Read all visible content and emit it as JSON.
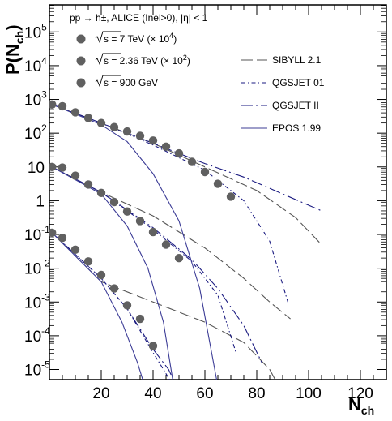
{
  "chart_data": {
    "type": "scatter",
    "title": "pp → h±, ALICE (Inel>0), |η| < 1",
    "xlabel": {
      "main": "N",
      "sub": "ch"
    },
    "ylabel": {
      "pre": "P(N",
      "sub": "ch",
      "post": ")"
    },
    "xlim": [
      0,
      130
    ],
    "ylim_log10": [
      -5.3,
      5.8
    ],
    "yscale": "log",
    "x_ticks": [
      20,
      40,
      60,
      80,
      100,
      120
    ],
    "y_ticks": [
      {
        "exp": 5,
        "base": "10",
        "sup": "5"
      },
      {
        "exp": 4,
        "base": "10",
        "sup": "4"
      },
      {
        "exp": 3,
        "base": "10",
        "sup": "3"
      },
      {
        "exp": 2,
        "base": "10",
        "sup": "2"
      },
      {
        "exp": 1,
        "base": "10",
        "sup": ""
      },
      {
        "exp": 0,
        "base": "1",
        "sup": ""
      },
      {
        "exp": -1,
        "base": "10",
        "sup": "-1"
      },
      {
        "exp": -2,
        "base": "10",
        "sup": "-2"
      },
      {
        "exp": -3,
        "base": "10",
        "sup": "-3"
      },
      {
        "exp": -4,
        "base": "10",
        "sup": "-4"
      },
      {
        "exp": -5,
        "base": "10",
        "sup": "-5"
      }
    ],
    "grid": false,
    "legend_position": "top",
    "data_series": [
      {
        "name": "√s = 7 TeV (× 10⁴)",
        "label_main": "s = 7 TeV (× 10",
        "label_sup": "4",
        "label_end": ")",
        "marker": "circle",
        "color": "#606060",
        "x": [
          1,
          5,
          10,
          15,
          20,
          25,
          30,
          35,
          40,
          45,
          50,
          55,
          60,
          65,
          70
        ],
        "log10_y": [
          2.85,
          2.8,
          2.62,
          2.45,
          2.3,
          2.18,
          2.05,
          1.92,
          1.78,
          1.6,
          1.4,
          1.15,
          0.85,
          0.5,
          0.12
        ]
      },
      {
        "name": "√s = 2.36 TeV (× 10²)",
        "label_main": "s = 2.36 TeV (× 10",
        "label_sup": "2",
        "label_end": ")",
        "marker": "circle",
        "color": "#606060",
        "x": [
          1,
          5,
          10,
          15,
          20,
          25,
          30,
          35,
          40,
          45,
          50
        ],
        "log10_y": [
          1.0,
          0.98,
          0.74,
          0.48,
          0.23,
          -0.04,
          -0.32,
          -0.6,
          -0.93,
          -1.3,
          -1.7
        ]
      },
      {
        "name": "√s = 900 GeV",
        "label_main": "s = 900 GeV",
        "label_sup": "",
        "label_end": "",
        "marker": "circle",
        "color": "#606060",
        "x": [
          1,
          5,
          10,
          15,
          20,
          25,
          30,
          35,
          40
        ],
        "log10_y": [
          -0.95,
          -1.1,
          -1.45,
          -1.8,
          -2.2,
          -2.6,
          -3.1,
          -3.5,
          -4.3
        ]
      }
    ],
    "model_series": [
      {
        "name": "SIBYLL 2.1",
        "style": "long-dash",
        "color": "#555555",
        "curves": [
          {
            "x": [
              1,
              20,
              40,
              60,
              80,
              95,
              105
            ],
            "log10_y": [
              2.85,
              2.3,
              1.7,
              1.0,
              0.3,
              -0.5,
              -1.3
            ]
          },
          {
            "x": [
              1,
              20,
              40,
              60,
              75,
              85,
              93
            ],
            "log10_y": [
              1.0,
              0.25,
              -0.45,
              -1.4,
              -2.3,
              -3.0,
              -3.5
            ]
          },
          {
            "x": [
              1,
              20,
              40,
              60,
              75,
              85,
              92
            ],
            "log10_y": [
              -0.95,
              -2.4,
              -3.0,
              -3.6,
              -4.2,
              -5.0,
              -6.0
            ]
          }
        ]
      },
      {
        "name": "QGSJET 01",
        "style": "dash-dot",
        "color": "#1a1a80",
        "curves": [
          {
            "x": [
              1,
              20,
              40,
              60,
              75,
              85,
              92
            ],
            "log10_y": [
              2.85,
              2.3,
              1.65,
              0.9,
              0.0,
              -1.2,
              -3.0
            ]
          },
          {
            "x": [
              1,
              20,
              40,
              55,
              65,
              72
            ],
            "log10_y": [
              1.0,
              0.25,
              -0.85,
              -1.8,
              -2.8,
              -4.5
            ]
          },
          {
            "x": [
              1,
              20,
              30,
              40,
              48,
              52
            ],
            "log10_y": [
              -0.95,
              -2.3,
              -3.2,
              -4.5,
              -5.5,
              -6.5
            ]
          }
        ]
      },
      {
        "name": "QGSJET II",
        "style": "long-dash-dot",
        "color": "#1a1a80",
        "curves": [
          {
            "x": [
              1,
              20,
              40,
              60,
              75,
              90,
              105
            ],
            "log10_y": [
              2.85,
              2.3,
              1.7,
              1.1,
              0.7,
              0.2,
              -0.3
            ]
          },
          {
            "x": [
              1,
              20,
              40,
              55,
              65,
              75,
              82
            ],
            "log10_y": [
              1.0,
              0.25,
              -0.8,
              -1.75,
              -2.6,
              -3.7,
              -4.8
            ]
          },
          {
            "x": [
              1,
              20,
              30,
              40,
              46,
              52
            ],
            "log10_y": [
              -0.95,
              -2.3,
              -3.2,
              -4.4,
              -5.0,
              -6.0
            ]
          }
        ]
      },
      {
        "name": "EPOS 1.99",
        "style": "solid",
        "color": "#3c3c96",
        "curves": [
          {
            "x": [
              1,
              20,
              30,
              40,
              50,
              58,
              65
            ],
            "log10_y": [
              2.85,
              2.25,
              1.75,
              0.8,
              -0.6,
              -2.6,
              -5.5
            ]
          },
          {
            "x": [
              1,
              20,
              30,
              38,
              44,
              48
            ],
            "log10_y": [
              1.0,
              0.2,
              -0.75,
              -2.0,
              -3.6,
              -5.5
            ]
          },
          {
            "x": [
              1,
              20,
              28,
              34,
              38,
              41
            ],
            "log10_y": [
              -0.95,
              -2.4,
              -3.6,
              -4.8,
              -5.8,
              -6.5
            ]
          }
        ]
      }
    ]
  }
}
